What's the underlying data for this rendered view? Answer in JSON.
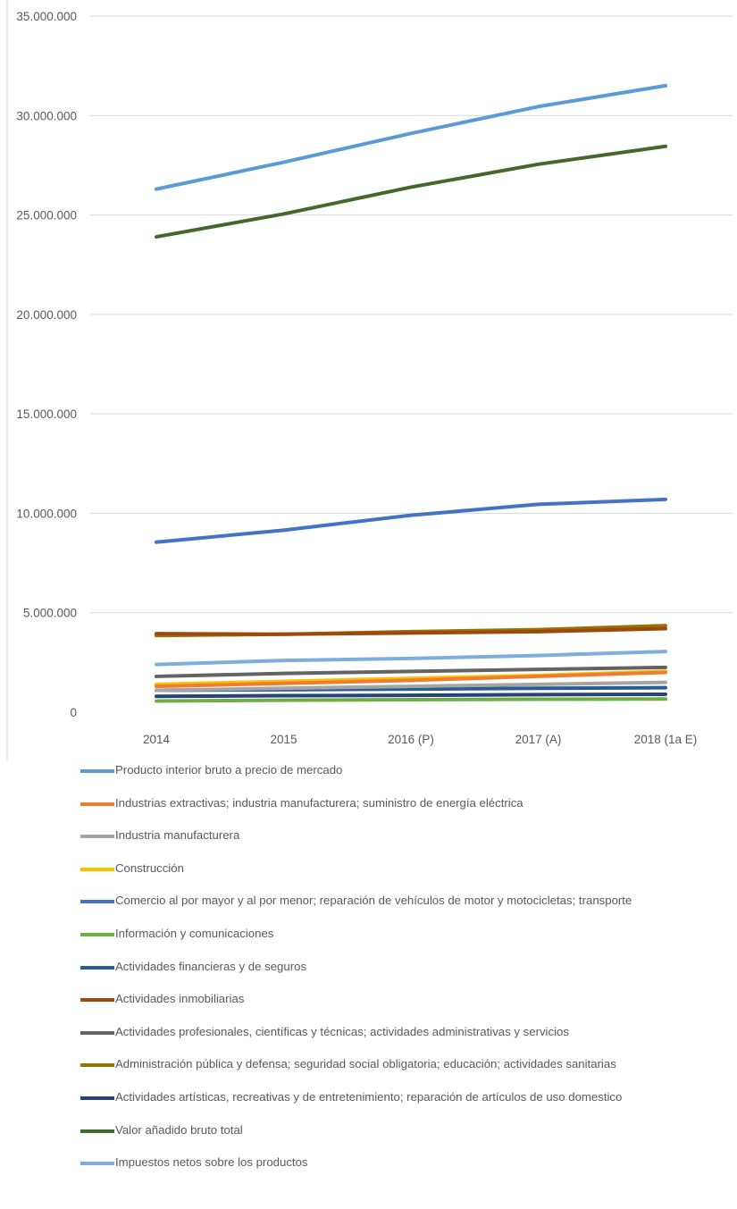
{
  "chart_data": {
    "type": "line",
    "title": "",
    "xlabel": "",
    "ylabel": "",
    "categories": [
      "2014",
      "2015",
      "2016 (P)",
      "2017 (A)",
      "2018 (1a E)"
    ],
    "ylim": [
      0,
      35000000
    ],
    "y_ticks": [
      0,
      5000000,
      10000000,
      15000000,
      20000000,
      25000000,
      30000000,
      35000000
    ],
    "y_tick_labels": [
      "0",
      "5.000.000",
      "10.000.000",
      "15.000.000",
      "20.000.000",
      "25.000.000",
      "30.000.000",
      "35.000.000"
    ],
    "grid": true,
    "legend_position": "bottom",
    "series": [
      {
        "name": "Producto interior bruto a precio de mercado",
        "color": "#5B9BD5",
        "values": [
          26300000,
          27650000,
          29100000,
          30450000,
          31500000
        ]
      },
      {
        "name": "Industrias extractivas; industria manufacturera; suministro de energía eléctrica",
        "color": "#ED7D31",
        "values": [
          1300000,
          1450000,
          1600000,
          1800000,
          2000000
        ]
      },
      {
        "name": "Industria manufacturera",
        "color": "#A5A5A5",
        "values": [
          1100000,
          1200000,
          1300000,
          1400000,
          1500000
        ]
      },
      {
        "name": "Construcción",
        "color": "#FFC000",
        "values": [
          1400000,
          1550000,
          1700000,
          1850000,
          2050000
        ]
      },
      {
        "name": "Comercio al por mayor y al por menor; reparación de vehículos de motor y motocicletas; transporte",
        "color": "#4472C4",
        "values": [
          8550000,
          9150000,
          9900000,
          10450000,
          10700000
        ]
      },
      {
        "name": "Información y comunicaciones",
        "color": "#70AD47",
        "values": [
          560000,
          600000,
          630000,
          650000,
          660000
        ]
      },
      {
        "name": "Actividades financieras y de seguros",
        "color": "#255E91",
        "values": [
          1100000,
          1130000,
          1160000,
          1200000,
          1230000
        ]
      },
      {
        "name": "Actividades inmobiliarias",
        "color": "#9E480E",
        "values": [
          3950000,
          3920000,
          3980000,
          4050000,
          4200000
        ]
      },
      {
        "name": "Actividades profesionales, científicas y técnicas; actividades administrativas y servicios",
        "color": "#636363",
        "values": [
          1800000,
          1950000,
          2050000,
          2150000,
          2250000
        ]
      },
      {
        "name": "Administración pública y defensa; seguridad social obligatoria; educación; actividades sanitarias",
        "color": "#997300",
        "values": [
          3850000,
          3920000,
          4050000,
          4150000,
          4350000
        ]
      },
      {
        "name": "Actividades artísticas, recreativas y de entretenimiento; reparación de artículos de uso domestico",
        "color": "#264478",
        "values": [
          800000,
          830000,
          850000,
          880000,
          900000
        ]
      },
      {
        "name": "Valor añadido bruto total",
        "color": "#43682B",
        "values": [
          23900000,
          25050000,
          26400000,
          27550000,
          28450000
        ]
      },
      {
        "name": "Impuestos netos sobre los productos",
        "color": "#7CAFDD",
        "values": [
          2400000,
          2600000,
          2700000,
          2850000,
          3050000
        ]
      }
    ]
  }
}
